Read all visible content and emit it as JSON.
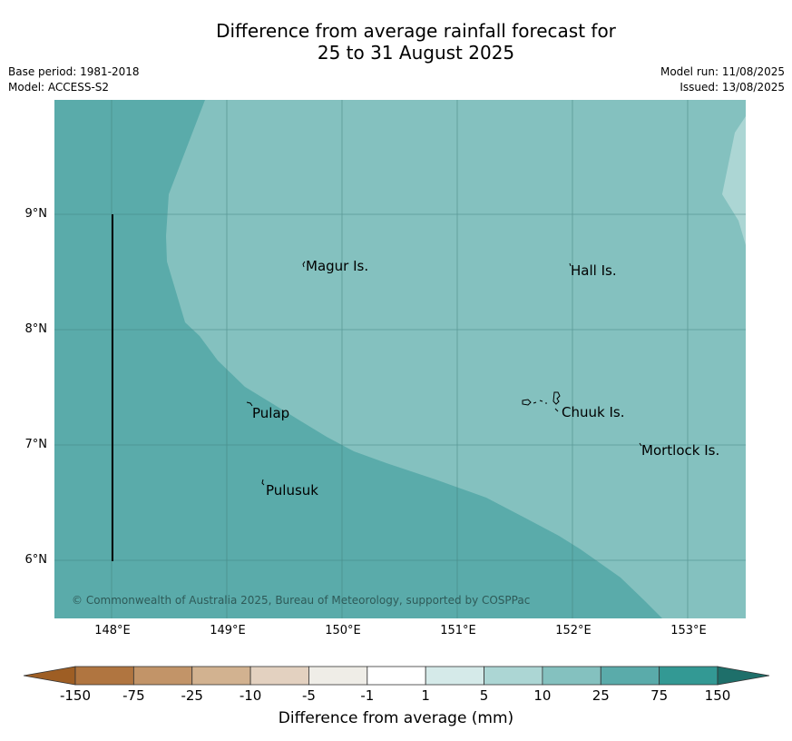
{
  "header": {
    "title_line1": "Difference from average rainfall forecast for",
    "title_line2": "25 to 31 August 2025",
    "base_period": "Base period: 1981-2018",
    "model": "Model: ACCESS-S2",
    "model_run": "Model run: 11/08/2025",
    "issued": "Issued: 13/08/2025"
  },
  "map": {
    "lat_labels": [
      "9°N",
      "8°N",
      "7°N",
      "6°N"
    ],
    "lon_labels": [
      "148°E",
      "149°E",
      "150°E",
      "151°E",
      "152°E",
      "153°E"
    ],
    "places": {
      "magur": "Magur Is.",
      "hall": "Hall Is.",
      "pulap": "Pulap",
      "chuuk": "Chuuk Is.",
      "mortlock": "Mortlock Is.",
      "pulusuk": "Pulusuk"
    },
    "copyright": "© Commonwealth of Australia 2025, Bureau of Meteorology, supported by COSPPac",
    "colors": {
      "band_25_75": "#5aabaa",
      "band_10_25": "#84c1bf",
      "band_5_10": "#acd6d4"
    }
  },
  "colorbar": {
    "title": "Difference from average (mm)",
    "ticks": [
      "-150",
      "-75",
      "-25",
      "-10",
      "-5",
      "-1",
      "1",
      "5",
      "10",
      "25",
      "75",
      "150"
    ],
    "colors": [
      "#9e5e24",
      "#b07540",
      "#c29468",
      "#d2b290",
      "#e3d1c0",
      "#efede7",
      "#ffffff",
      "#d5eae9",
      "#acd6d4",
      "#84c1bf",
      "#5aabaa",
      "#339994",
      "#1e6f6a"
    ]
  }
}
